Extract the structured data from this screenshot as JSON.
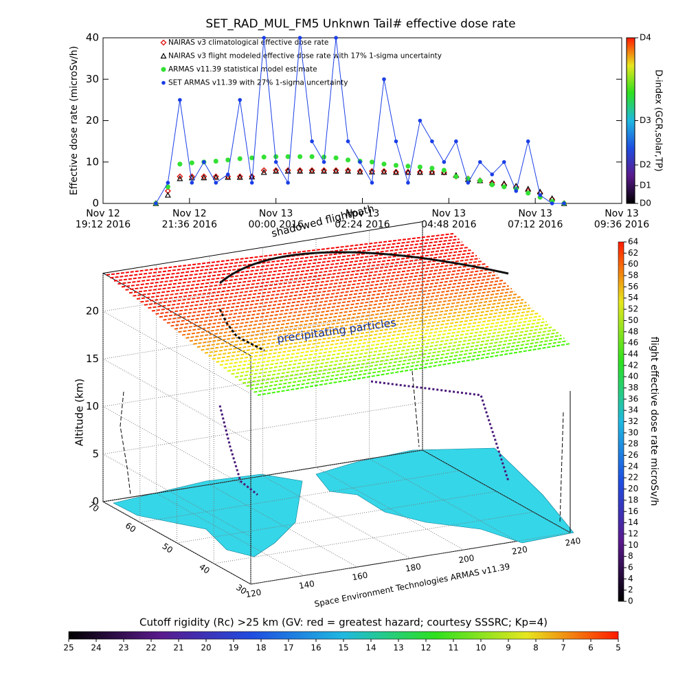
{
  "chart_data": [
    {
      "type": "line",
      "title": "SET_RAD_MUL_FM5 Unknwn Tail#  effective dose rate",
      "ylabel": "Effective dose rate (microSv/h)",
      "y2label": "D-index (GCR,solar,TP)",
      "x": [
        "2016-11-12T20:40",
        "2016-11-12T21:00",
        "2016-11-12T21:20",
        "2016-11-12T21:40",
        "2016-11-12T22:00",
        "2016-11-12T22:20",
        "2016-11-12T22:40",
        "2016-11-12T23:00",
        "2016-11-12T23:20",
        "2016-11-12T23:40",
        "2016-11-13T00:00",
        "2016-11-13T00:20",
        "2016-11-13T00:40",
        "2016-11-13T01:00",
        "2016-11-13T01:20",
        "2016-11-13T01:40",
        "2016-11-13T02:00",
        "2016-11-13T02:20",
        "2016-11-13T02:40",
        "2016-11-13T03:00",
        "2016-11-13T03:20",
        "2016-11-13T03:40",
        "2016-11-13T04:00",
        "2016-11-13T04:20",
        "2016-11-13T04:40",
        "2016-11-13T05:00",
        "2016-11-13T05:20",
        "2016-11-13T05:40",
        "2016-11-13T06:00",
        "2016-11-13T06:20",
        "2016-11-13T06:40",
        "2016-11-13T07:00",
        "2016-11-13T07:20",
        "2016-11-13T07:40",
        "2016-11-13T08:00"
      ],
      "xlim": [
        "2016-11-12T19:12",
        "2016-11-13T09:36"
      ],
      "xticks": [
        {
          "value": "2016-11-12T19:12",
          "label": "Nov 12\n19:12 2016"
        },
        {
          "value": "2016-11-12T21:36",
          "label": "Nov 12\n21:36 2016"
        },
        {
          "value": "2016-11-13T00:00",
          "label": "Nov 13\n00:00 2016"
        },
        {
          "value": "2016-11-13T02:24",
          "label": "Nov 13\n02:24 2016"
        },
        {
          "value": "2016-11-13T04:48",
          "label": "Nov 13\n04:48 2016"
        },
        {
          "value": "2016-11-13T07:12",
          "label": "Nov 13\n07:12 2016"
        },
        {
          "value": "2016-11-13T09:36",
          "label": "Nov 13\n09:36 2016"
        }
      ],
      "ylim": [
        0,
        40
      ],
      "yticks": [
        0,
        10,
        20,
        30,
        40
      ],
      "y2lim": [
        0,
        40
      ],
      "y2ticks": [
        {
          "value": 0,
          "label": "D0"
        },
        {
          "value": 4.3,
          "label": "D1"
        },
        {
          "value": 9.3,
          "label": "D2"
        },
        {
          "value": 20,
          "label": "D3"
        },
        {
          "value": 40,
          "label": "D4"
        }
      ],
      "y2colors": [
        "#000000",
        "#5a1a8c",
        "#1f4de0",
        "#1fb8e0",
        "#2ee01f",
        "#e6e61f",
        "#ff1a00"
      ],
      "legend": "upper left",
      "series": [
        {
          "name": "NAIRAS v3 climatological effective dose rate",
          "color": "#e0201a",
          "marker": "diamond",
          "values": [
            0,
            3,
            6.5,
            6.5,
            6.5,
            6.5,
            6.5,
            6.5,
            6.5,
            8,
            8,
            8,
            8,
            8,
            8,
            8,
            8,
            7.8,
            7.8,
            7.8,
            7.6,
            7.6,
            7.6,
            7.6,
            7.5,
            6.5,
            6,
            5.5,
            5,
            4.5,
            4,
            3,
            2.5,
            1,
            0
          ]
        },
        {
          "name": "NAIRAS v3 flight modeled effective dose rate with 17% 1-sigma uncertainty",
          "color": "#000000",
          "marker": "triangle",
          "values": [
            0,
            2,
            6,
            6.2,
            6.2,
            6.3,
            6.3,
            6.3,
            6.4,
            7.5,
            7.8,
            7.8,
            7.8,
            7.8,
            7.8,
            7.8,
            7.8,
            7.6,
            7.6,
            7.6,
            7.5,
            7.5,
            7.5,
            7.5,
            7.5,
            6.8,
            5.8,
            5.5,
            5,
            4.8,
            4.2,
            3.5,
            2.8,
            1.2,
            0
          ]
        },
        {
          "name": "ARMAS v11.39 statistical model estimate",
          "color": "#33e033",
          "marker": "asterisk",
          "values": [
            0,
            4,
            9.5,
            9.8,
            10,
            10.2,
            10.5,
            10.8,
            11,
            11.2,
            11.3,
            11.3,
            11.3,
            11.3,
            11.2,
            11,
            10.5,
            10.2,
            10,
            9.5,
            9.2,
            9,
            8.8,
            8.5,
            8,
            6.5,
            6,
            5.5,
            4.5,
            4,
            3.5,
            2.5,
            1.5,
            0.5,
            0
          ]
        },
        {
          "name": "SET ARMAS v11.39 with 27% 1-sigma uncertainty",
          "color": "#1a3ee6",
          "marker": "circle",
          "line": true,
          "values": [
            0,
            5,
            25,
            5,
            10,
            5,
            7,
            25,
            5,
            40,
            10,
            5,
            40,
            15,
            10,
            40,
            15,
            10,
            5,
            30,
            15,
            5,
            20,
            15,
            10,
            15,
            5,
            10,
            7,
            10,
            3,
            15,
            2,
            0,
            0
          ]
        }
      ]
    },
    {
      "type": "surface3d",
      "zlabel": "Altitude (km)",
      "xlim": [
        120,
        240
      ],
      "xticks": [
        120,
        140,
        160,
        180,
        200,
        220,
        240
      ],
      "ylim": [
        30,
        70
      ],
      "yticks": [
        30,
        40,
        50,
        60,
        70
      ],
      "zlim": [
        0,
        24
      ],
      "zticks": [
        0,
        5,
        10,
        15,
        20
      ],
      "grid": true,
      "annotations": [
        "shadowed flightpath",
        "precipitating particles",
        "Space Environment Technologies ARMAS v11.39"
      ]
    },
    {
      "type": "colorbar",
      "orientation": "vertical",
      "label": "flight effective dose rate microSv/h",
      "lim": [
        0,
        64
      ],
      "ticks": [
        0,
        2,
        4,
        6,
        8,
        10,
        12,
        14,
        16,
        18,
        20,
        22,
        24,
        26,
        28,
        30,
        32,
        34,
        36,
        38,
        40,
        42,
        44,
        46,
        48,
        50,
        52,
        54,
        56,
        58,
        60,
        62,
        64
      ],
      "colors": [
        "#000000",
        "#5a1a8c",
        "#1f4de0",
        "#1fb8e0",
        "#2ee01f",
        "#e6e61f",
        "#ff1a00"
      ]
    },
    {
      "type": "colorbar",
      "orientation": "horizontal",
      "label": "Cutoff rigidity (Rc) >25 km (GV: red = greatest hazard; courtesy SSSRC; Kp=4)",
      "lim": [
        25,
        5
      ],
      "ticks": [
        25,
        24,
        23,
        22,
        21,
        20,
        19,
        18,
        17,
        16,
        15,
        14,
        13,
        12,
        11,
        10,
        9,
        8,
        7,
        6,
        5
      ],
      "colors": [
        "#000000",
        "#5a1a8c",
        "#1f4de0",
        "#1fb8e0",
        "#2ee01f",
        "#e6e61f",
        "#ff1a00"
      ]
    }
  ]
}
